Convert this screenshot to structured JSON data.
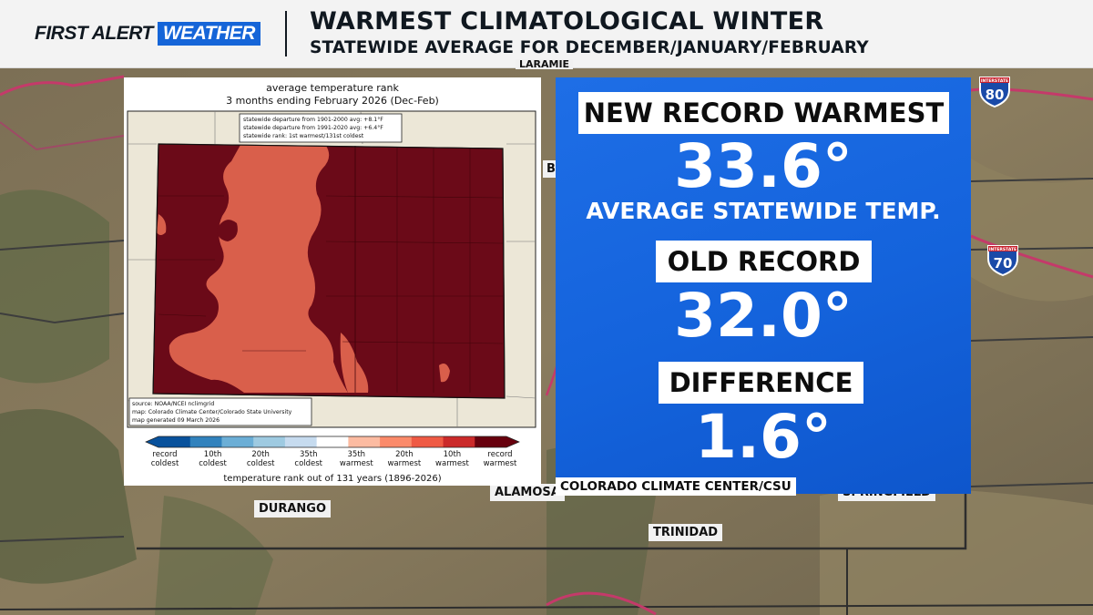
{
  "header": {
    "brand_first": "FIRST ALERT",
    "brand_weather": "WEATHER",
    "title": "WARMEST CLIMATOLOGICAL WINTER",
    "subtitle": "STATEWIDE AVERAGE FOR DECEMBER/JANUARY/FEBRUARY"
  },
  "map_labels": {
    "durango": "DURANGO",
    "trinidad": "TRINIDAD",
    "alamosa": "ALAMOSA",
    "springfield": "SPRINGFIELD",
    "laramie": "LARAMIE",
    "partial_b": "B"
  },
  "interstates": {
    "i80": {
      "top": "INTERSTATE",
      "number": "80"
    },
    "i70": {
      "top": "INTERSTATE",
      "number": "70"
    }
  },
  "climate_map": {
    "title_line1": "average temperature rank",
    "title_line2": "3 months ending February 2026 (Dec-Feb)",
    "stats": [
      "statewide departure from 1901-2000 avg: +8.1°F",
      "statewide departure from 1991-2020 avg: +6.4°F",
      "statewide rank: 1st warmest/131st coldest"
    ],
    "source_lines": [
      "source: NOAA/NCEI nclimgrid",
      "map: Colorado Climate Center/Colorado State University",
      "map generated 09 March 2026"
    ],
    "legend_ticks": [
      {
        "l1": "record",
        "l2": "coldest"
      },
      {
        "l1": "10th",
        "l2": "coldest"
      },
      {
        "l1": "20th",
        "l2": "coldest"
      },
      {
        "l1": "35th",
        "l2": "coldest"
      },
      {
        "l1": "35th",
        "l2": "warmest"
      },
      {
        "l1": "20th",
        "l2": "warmest"
      },
      {
        "l1": "10th",
        "l2": "warmest"
      },
      {
        "l1": "record",
        "l2": "warmest"
      }
    ],
    "legend_colors": [
      "#08519c",
      "#3182bd",
      "#6baed6",
      "#9ecae1",
      "#c6dbef",
      "#ffffff",
      "#fcbba1",
      "#fb8a6a",
      "#ef5a44",
      "#cb2a2a",
      "#67000d"
    ],
    "axis_label": "temperature rank out of 131 years (1896-2026)",
    "fill_record_warmest": "#6b0a18",
    "fill_warmest": "#d95f4b"
  },
  "info": {
    "new_record_label": "NEW RECORD WARMEST",
    "new_record_value": "33.6°",
    "new_record_caption": "AVERAGE STATEWIDE TEMP.",
    "old_record_label": "OLD RECORD",
    "old_record_value": "32.0°",
    "difference_label": "DIFFERENCE",
    "difference_value": "1.6°",
    "source": "COLORADO CLIMATE CENTER/CSU",
    "panel_color": "#1463dc"
  }
}
